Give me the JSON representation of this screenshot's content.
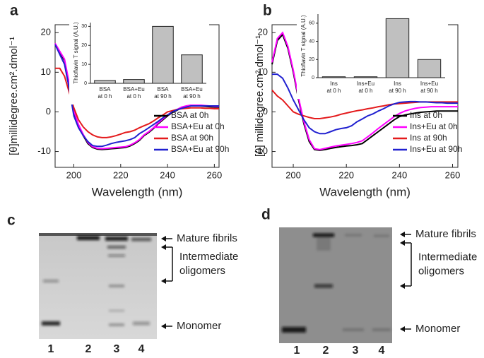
{
  "chart_data": [
    {
      "type": "line",
      "panel": "a",
      "ylabel": "[θ]millidegree.cm².dmol⁻¹",
      "xlabel": "Wavelength (nm)",
      "x": [
        192,
        194,
        196,
        198,
        200,
        202,
        204,
        206,
        208,
        210,
        212,
        214,
        216,
        218,
        220,
        222,
        224,
        226,
        228,
        230,
        232,
        234,
        236,
        238,
        240,
        242,
        244,
        246,
        248,
        250,
        252,
        254,
        256,
        258,
        260,
        262
      ],
      "xlim": [
        192,
        262
      ],
      "xticks": [
        200,
        220,
        240,
        260
      ],
      "ylim": [
        -14,
        22
      ],
      "yticks": [
        -10,
        0,
        10,
        20
      ],
      "legend": "lower right",
      "series": [
        {
          "name": "BSA at 0h",
          "color": "#000000",
          "values": [
            17,
            15,
            13,
            7,
            0,
            -3.5,
            -6,
            -8,
            -9,
            -9.4,
            -9.5,
            -9.4,
            -9.3,
            -9.2,
            -9.1,
            -9,
            -8.6,
            -8,
            -7.2,
            -6,
            -5.2,
            -4.2,
            -3,
            -2,
            -1,
            -0.2,
            0.4,
            1,
            1.3,
            1.5,
            1.5,
            1.5,
            1.4,
            1.3,
            1.2,
            1.2
          ]
        },
        {
          "name": "BSA+Eu at 0h",
          "color": "#ff00ff",
          "values": [
            17.3,
            15.3,
            13.3,
            7.3,
            0.3,
            -3.2,
            -5.7,
            -7.7,
            -8.8,
            -9.2,
            -9.3,
            -9.2,
            -9.1,
            -9,
            -8.9,
            -8.8,
            -8.4,
            -7.8,
            -7,
            -5.8,
            -5,
            -4,
            -2.8,
            -1.8,
            -0.8,
            0,
            0.6,
            1.2,
            1.5,
            1.7,
            1.7,
            1.7,
            1.6,
            1.5,
            1.4,
            1.4
          ]
        },
        {
          "name": "BSA at 90h",
          "color": "#e41a1c",
          "values": [
            11,
            11,
            9,
            5,
            1,
            -2,
            -3.8,
            -5,
            -5.8,
            -6.3,
            -6.5,
            -6.5,
            -6.3,
            -6,
            -5.6,
            -5.2,
            -5,
            -4.6,
            -4,
            -3.5,
            -3,
            -2.3,
            -1.5,
            -0.8,
            0,
            0.3,
            0.6,
            0.8,
            0.9,
            1,
            1,
            1,
            0.9,
            0.9,
            0.8,
            0.8
          ]
        },
        {
          "name": "BSA+Eu at 90h",
          "color": "#2020d0",
          "values": [
            17,
            14.5,
            12,
            6,
            -1,
            -4,
            -6,
            -7.5,
            -8.5,
            -8.7,
            -8.7,
            -8.4,
            -8,
            -7.7,
            -7.5,
            -7.3,
            -7,
            -6.5,
            -5.5,
            -4.8,
            -4,
            -3.2,
            -2.4,
            -1.5,
            -0.8,
            0,
            0.5,
            0.9,
            1.2,
            1.5,
            1.5,
            1.5,
            1.5,
            1.5,
            1.5,
            1.5
          ]
        }
      ]
    },
    {
      "type": "bar",
      "ylabel": "Thioflavin T signal (A.U.)",
      "categories": [
        [
          "BSA",
          "at 0 h"
        ],
        [
          "BSA+Eu",
          "at 0 h"
        ],
        [
          "BSA",
          "at 90 h"
        ],
        [
          "BSA+Eu",
          "at 90 h"
        ]
      ],
      "values": [
        1.5,
        2,
        30,
        15
      ],
      "color": "#c0c0c0",
      "ylim": [
        0,
        32
      ],
      "yticks": [
        0,
        10,
        20,
        30
      ]
    },
    {
      "type": "line",
      "panel": "b",
      "ylabel": "[θ] millidegree.cm².dmol⁻¹",
      "xlabel": "Wavelength (nm)",
      "x": [
        192,
        194,
        196,
        198,
        200,
        202,
        204,
        206,
        208,
        210,
        212,
        214,
        216,
        218,
        220,
        222,
        224,
        226,
        228,
        230,
        232,
        234,
        236,
        238,
        240,
        242,
        244,
        246,
        248,
        250,
        252,
        254,
        256,
        258,
        260,
        262
      ],
      "xlim": [
        192,
        262
      ],
      "xticks": [
        200,
        220,
        240,
        260
      ],
      "ylim": [
        -14,
        22
      ],
      "yticks": [
        -10,
        0,
        10,
        20
      ],
      "legend": "lower right",
      "series": [
        {
          "name": "Ins at 0h",
          "color": "#000000",
          "values": [
            12,
            18,
            19.5,
            16,
            10,
            3,
            -3,
            -7.5,
            -9.5,
            -9.7,
            -9.5,
            -9.2,
            -9,
            -8.8,
            -8.6,
            -8.5,
            -8.3,
            -8,
            -7,
            -6,
            -5,
            -4,
            -3,
            -2,
            -1.2,
            -0.8,
            -0.5,
            -0.3,
            -0.1,
            0,
            0.1,
            0.2,
            0.2,
            0.2,
            0.2,
            0.2
          ]
        },
        {
          "name": "Ins+Eu at 0h",
          "color": "#ff00ff",
          "values": [
            12.5,
            18.5,
            20,
            16.5,
            10.5,
            3.5,
            -2.5,
            -7,
            -9.3,
            -9.5,
            -9.2,
            -8.9,
            -8.6,
            -8.4,
            -8.2,
            -8,
            -7.7,
            -7.3,
            -6.3,
            -5.3,
            -4.2,
            -3.2,
            -2.2,
            -1.2,
            -0.4,
            0.2,
            0.6,
            0.9,
            1.1,
            1.2,
            1.3,
            1.3,
            1.3,
            1.3,
            1.3,
            1.3
          ]
        },
        {
          "name": "Ins at 90h",
          "color": "#e41a1c",
          "values": [
            5.5,
            4,
            3,
            1.5,
            0,
            -0.6,
            -1,
            -1.4,
            -1.7,
            -1.7,
            -1.5,
            -1.3,
            -1,
            -0.6,
            -0.3,
            0,
            0.3,
            0.5,
            0.8,
            1,
            1.3,
            1.5,
            1.8,
            2,
            2.1,
            2.2,
            2.3,
            2.4,
            2.5,
            2.5,
            2.5,
            2.5,
            2.5,
            2.5,
            2.5,
            2.5
          ]
        },
        {
          "name": "Ins+Eu at 90h",
          "color": "#2020d0",
          "values": [
            9.5,
            9.5,
            8.5,
            6,
            3,
            0.5,
            -2,
            -4,
            -5,
            -5.5,
            -5.5,
            -5,
            -4.5,
            -4.2,
            -4,
            -3.5,
            -2.5,
            -1.8,
            -1,
            -0.5,
            0.2,
            0.8,
            1.5,
            2,
            2.4,
            2.5,
            2.6,
            2.6,
            2.5,
            2.5,
            2.4,
            2.3,
            2.3,
            2.2,
            2.2,
            2.2
          ]
        }
      ]
    },
    {
      "type": "bar",
      "ylabel": "Thioflavin T signal (A.U.)",
      "categories": [
        [
          "Ins",
          "at 0 h"
        ],
        [
          "Ins+Eu",
          "at 0 h"
        ],
        [
          "Ins",
          "at 90 h"
        ],
        [
          "Ins+Eu",
          "at 90 h"
        ]
      ],
      "values": [
        1,
        1,
        65,
        20
      ],
      "color": "#c0c0c0",
      "ylim": [
        0,
        70
      ],
      "yticks": [
        0,
        20,
        40,
        60
      ]
    }
  ],
  "gels": [
    {
      "panel": "c",
      "lanes": [
        "1",
        "2",
        "3",
        "4"
      ],
      "labels": {
        "fibrils": "Mature fibrils",
        "intermediate": [
          "Intermediate",
          "oligomers"
        ],
        "monomer": "Monomer"
      }
    },
    {
      "panel": "d",
      "lanes": [
        "1",
        "2",
        "3",
        "4"
      ],
      "labels": {
        "fibrils": "Mature fibrils",
        "intermediate": [
          "Intermediate",
          "oligomers"
        ],
        "monomer": "Monomer"
      }
    }
  ]
}
